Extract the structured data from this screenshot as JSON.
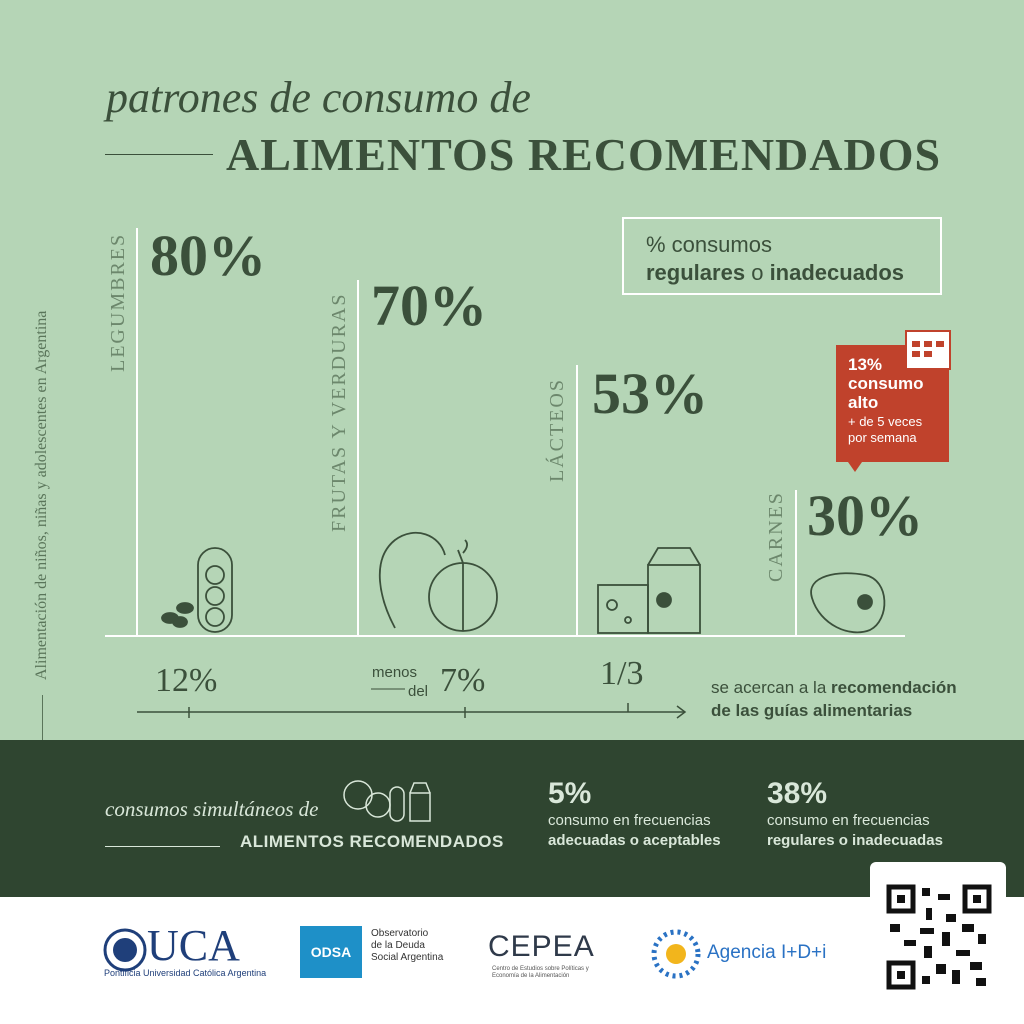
{
  "header": {
    "kicker": "patrones de consumo de",
    "title": "ALIMENTOS RECOMENDADOS"
  },
  "side_note": "Alimentación de niños, niñas y adolescentes en Argentina",
  "legend": {
    "line1": "% consumos",
    "strong1": "regulares",
    "joiner": "o",
    "strong2": "inadecuados"
  },
  "groups": [
    {
      "label": "LEGUMBRES",
      "percent": "80%",
      "near": "12%"
    },
    {
      "label": "FRUTAS Y VERDURAS",
      "percent": "70%",
      "near_prefix1": "menos",
      "near_prefix2": "del",
      "near": "7%"
    },
    {
      "label": "LÁCTEOS",
      "percent": "53%",
      "near": "1/3"
    },
    {
      "label": "CARNES",
      "percent": "30%"
    }
  ],
  "callout": {
    "percent": "13%",
    "title": "consumo alto",
    "note1": "+ de 5 veces",
    "note2": "por semana"
  },
  "recommendation": {
    "plain": "se acercan a la",
    "strong1": "recomendación",
    "strong2": "de las guías alimentarias"
  },
  "simultaneous": {
    "kicker": "consumos simultáneos de",
    "title": "ALIMENTOS RECOMENDADOS",
    "stats": [
      {
        "percent": "5%",
        "line1": "consumo en frecuencias",
        "line2": "adecuadas o aceptables"
      },
      {
        "percent": "38%",
        "line1": "consumo en frecuencias",
        "line2": "regulares o inadecuadas"
      }
    ]
  },
  "logos": {
    "uca": "UCA",
    "uca_sub": "Pontificia Universidad Católica Argentina",
    "odsa": "ODSA",
    "odsa_sub1": "Observatorio",
    "odsa_sub2": "de la Deuda",
    "odsa_sub3": "Social Argentina",
    "cepea": "CEPEA",
    "cepea_sub": "Centro de Estudios sobre Políticas y Economía de la Alimentación",
    "agencia": "Agencia I+D+i"
  }
}
